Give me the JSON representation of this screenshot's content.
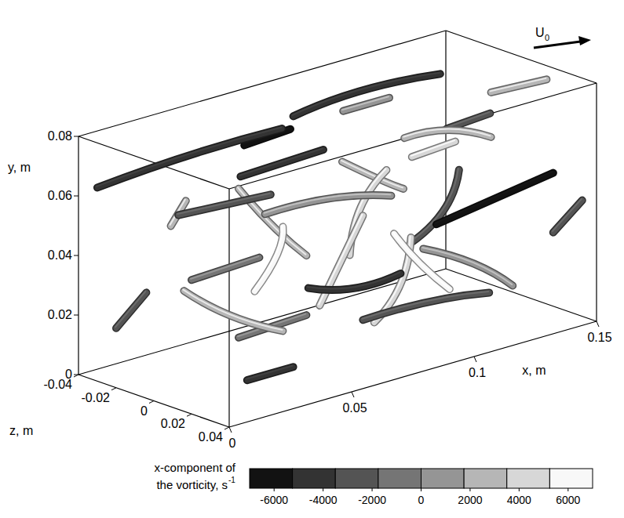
{
  "chart_data": {
    "type": "isosurface",
    "x_label": "x, m",
    "y_label": "y, m",
    "z_label": "z, m",
    "xlim": [
      0,
      0.15
    ],
    "ylim": [
      0,
      0.08
    ],
    "zlim": [
      -0.04,
      0.04
    ],
    "xticks": [
      0,
      0.05,
      0.1,
      0.15
    ],
    "yticks": [
      0,
      0.02,
      0.04,
      0.06,
      0.08
    ],
    "zticks": [
      -0.04,
      -0.02,
      0,
      0.02,
      0.04
    ],
    "flow_label": "U",
    "flow_label_subscript": "0",
    "colorbar": {
      "range": [
        -7000,
        7000
      ],
      "levels": 8,
      "ticks": [
        -6000,
        -4000,
        -2000,
        0,
        2000,
        4000,
        6000
      ],
      "label_lines": [
        "x-component of",
        "the vorticity, s"
      ],
      "label_superscript": "-1"
    },
    "tubes": [
      {
        "points": [
          [
            0.0,
            0.065,
            -0.03
          ],
          [
            0.03,
            0.072,
            -0.02
          ],
          [
            0.06,
            0.075,
            -0.01
          ]
        ],
        "vorticity": -5000
      },
      {
        "points": [
          [
            0.01,
            0.06,
            0.0
          ],
          [
            0.04,
            0.062,
            0.01
          ]
        ],
        "vorticity": -3000
      },
      {
        "points": [
          [
            0.08,
            0.07,
            -0.03
          ],
          [
            0.11,
            0.072,
            -0.035
          ],
          [
            0.14,
            0.07,
            -0.03
          ]
        ],
        "vorticity": -4000
      },
      {
        "points": [
          [
            0.05,
            0.055,
            -0.02
          ],
          [
            0.06,
            0.04,
            -0.015
          ],
          [
            0.07,
            0.03,
            -0.01
          ]
        ],
        "vorticity": 3000
      },
      {
        "points": [
          [
            0.06,
            0.02,
            0.01
          ],
          [
            0.065,
            0.035,
            0.015
          ],
          [
            0.07,
            0.05,
            0.02
          ]
        ],
        "vorticity": 4000
      },
      {
        "points": [
          [
            0.07,
            0.015,
            0.02
          ],
          [
            0.09,
            0.02,
            0.03
          ],
          [
            0.11,
            0.018,
            0.035
          ]
        ],
        "vorticity": -2000
      },
      {
        "points": [
          [
            0.08,
            0.03,
            0.0
          ],
          [
            0.085,
            0.045,
            -0.005
          ],
          [
            0.095,
            0.055,
            0.0
          ]
        ],
        "vorticity": 5000
      },
      {
        "points": [
          [
            0.1,
            0.04,
            0.02
          ],
          [
            0.12,
            0.045,
            0.025
          ],
          [
            0.14,
            0.05,
            0.03
          ]
        ],
        "vorticity": -6000
      },
      {
        "points": [
          [
            0.02,
            0.03,
            -0.01
          ],
          [
            0.03,
            0.02,
            0.0
          ],
          [
            0.045,
            0.015,
            0.01
          ]
        ],
        "vorticity": 2000
      },
      {
        "points": [
          [
            0.0,
            0.045,
            0.02
          ],
          [
            0.02,
            0.05,
            0.03
          ]
        ],
        "vorticity": -1000
      },
      {
        "points": [
          [
            0.11,
            0.06,
            -0.01
          ],
          [
            0.12,
            0.065,
            0.0
          ],
          [
            0.13,
            0.06,
            0.01
          ]
        ],
        "vorticity": 3000
      },
      {
        "points": [
          [
            0.12,
            0.02,
            -0.02
          ],
          [
            0.13,
            0.03,
            -0.01
          ],
          [
            0.14,
            0.04,
            -0.02
          ]
        ],
        "vorticity": -3000
      },
      {
        "points": [
          [
            0.03,
            0.06,
            0.02
          ],
          [
            0.05,
            0.065,
            0.03
          ],
          [
            0.07,
            0.06,
            0.035
          ]
        ],
        "vorticity": 1000
      },
      {
        "points": [
          [
            0.09,
            0.005,
            0.0
          ],
          [
            0.1,
            0.015,
            0.005
          ],
          [
            0.105,
            0.03,
            0.0
          ]
        ],
        "vorticity": 4000
      },
      {
        "points": [
          [
            0.04,
            0.035,
            0.03
          ],
          [
            0.055,
            0.03,
            0.035
          ],
          [
            0.07,
            0.035,
            0.04
          ]
        ],
        "vorticity": -5000
      },
      {
        "points": [
          [
            0.02,
            0.075,
            0.02
          ],
          [
            0.05,
            0.078,
            0.025
          ]
        ],
        "vorticity": -4000
      },
      {
        "points": [
          [
            0.13,
            0.075,
            0.01
          ],
          [
            0.145,
            0.078,
            0.02
          ]
        ],
        "vorticity": 2000
      },
      {
        "points": [
          [
            0.0,
            0.02,
            -0.02
          ],
          [
            0.02,
            0.025,
            -0.03
          ]
        ],
        "vorticity": -2000
      },
      {
        "points": [
          [
            0.075,
            0.045,
            0.03
          ],
          [
            0.08,
            0.035,
            0.035
          ],
          [
            0.09,
            0.025,
            0.04
          ]
        ],
        "vorticity": 6000
      },
      {
        "points": [
          [
            0.11,
            0.025,
            0.0
          ],
          [
            0.125,
            0.02,
            0.01
          ],
          [
            0.135,
            0.01,
            0.015
          ]
        ],
        "vorticity": 1000
      },
      {
        "points": [
          [
            0.05,
            0.005,
            -0.02
          ],
          [
            0.07,
            0.01,
            -0.01
          ]
        ],
        "vorticity": -1000
      },
      {
        "points": [
          [
            0.09,
            0.065,
            0.02
          ],
          [
            0.1,
            0.07,
            0.03
          ]
        ],
        "vorticity": 5000
      },
      {
        "points": [
          [
            0.14,
            0.03,
            0.03
          ],
          [
            0.148,
            0.04,
            0.035
          ]
        ],
        "vorticity": -3000
      },
      {
        "points": [
          [
            0.03,
            0.045,
            -0.03
          ],
          [
            0.04,
            0.05,
            -0.035
          ]
        ],
        "vorticity": 3000
      },
      {
        "points": [
          [
            0.06,
            0.065,
            -0.03
          ],
          [
            0.075,
            0.068,
            -0.025
          ]
        ],
        "vorticity": -6000
      },
      {
        "points": [
          [
            0.1,
            0.05,
            -0.03
          ],
          [
            0.115,
            0.04,
            -0.025
          ],
          [
            0.125,
            0.035,
            -0.03
          ]
        ],
        "vorticity": 2000
      },
      {
        "points": [
          [
            0.015,
            0.01,
            0.03
          ],
          [
            0.03,
            0.012,
            0.035
          ]
        ],
        "vorticity": -4000
      },
      {
        "points": [
          [
            0.085,
            0.075,
            -0.01
          ],
          [
            0.1,
            0.077,
            -0.005
          ]
        ],
        "vorticity": 0
      },
      {
        "points": [
          [
            0.045,
            0.025,
            -0.005
          ],
          [
            0.05,
            0.04,
            0.005
          ],
          [
            0.045,
            0.05,
            0.01
          ]
        ],
        "vorticity": 6000
      },
      {
        "points": [
          [
            0.135,
            0.055,
            -0.02
          ],
          [
            0.145,
            0.06,
            -0.01
          ]
        ],
        "vorticity": -2000
      }
    ]
  }
}
